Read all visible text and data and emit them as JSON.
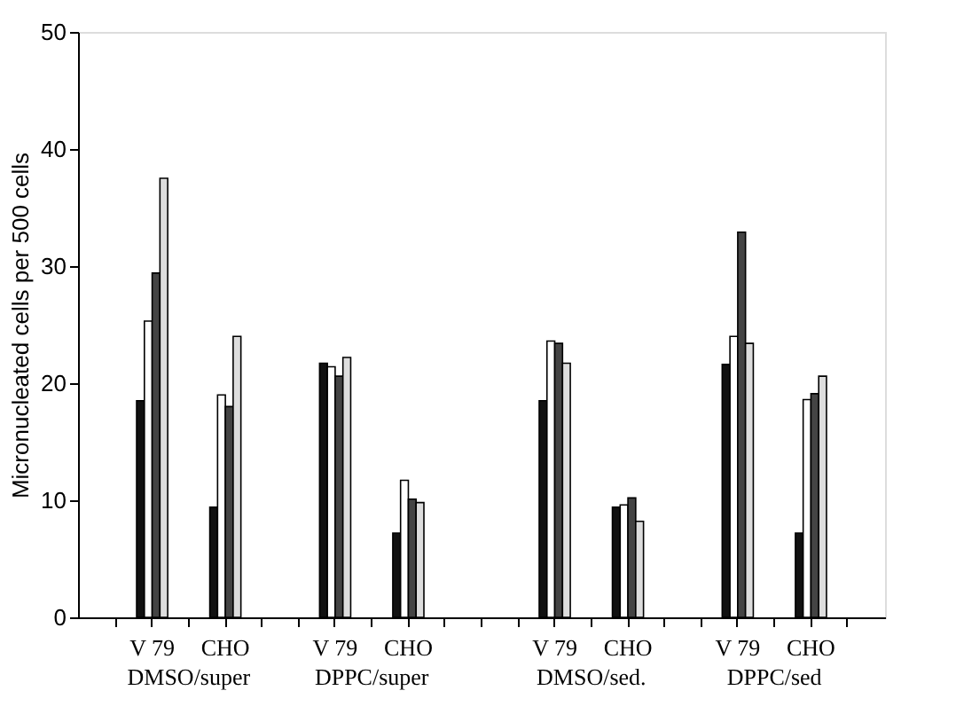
{
  "chart_data": {
    "type": "bar",
    "ylabel": "Micronucleated cells per 500 cells",
    "categories": [
      null,
      "V 79",
      null,
      "CHO",
      null,
      null,
      "V 79",
      null,
      "CHO",
      null,
      null,
      null,
      "V 79",
      null,
      "CHO",
      null,
      null,
      "V 79",
      null,
      "CHO",
      null
    ],
    "series": [
      {
        "color": "#111111",
        "values": [
          null,
          18.5,
          null,
          9.4,
          null,
          null,
          21.7,
          null,
          7.2,
          null,
          null,
          null,
          18.5,
          null,
          9.4,
          null,
          null,
          21.6,
          null,
          7.2,
          null
        ]
      },
      {
        "color": "#ffffff",
        "values": [
          null,
          25.3,
          null,
          19.0,
          null,
          null,
          21.4,
          null,
          11.7,
          null,
          null,
          null,
          23.6,
          null,
          9.6,
          null,
          null,
          24.0,
          null,
          18.6,
          null
        ]
      },
      {
        "color": "#444444",
        "values": [
          null,
          29.4,
          null,
          18.0,
          null,
          null,
          20.6,
          null,
          10.1,
          null,
          null,
          null,
          23.4,
          null,
          10.2,
          null,
          null,
          32.9,
          null,
          19.1,
          null
        ]
      },
      {
        "color": "#dddddd",
        "values": [
          null,
          37.5,
          null,
          24.0,
          null,
          null,
          22.2,
          null,
          9.8,
          null,
          null,
          null,
          21.7,
          null,
          8.2,
          null,
          null,
          23.4,
          null,
          20.6,
          null
        ]
      }
    ],
    "annotations": [
      "DMSO/super",
      "DPPC/super",
      "DMSO/sed.",
      "DPPC/sed"
    ],
    "ylim": [
      0,
      50
    ],
    "yticks": [
      0,
      10,
      20,
      30,
      40,
      50
    ],
    "grid": false,
    "legend": false
  }
}
